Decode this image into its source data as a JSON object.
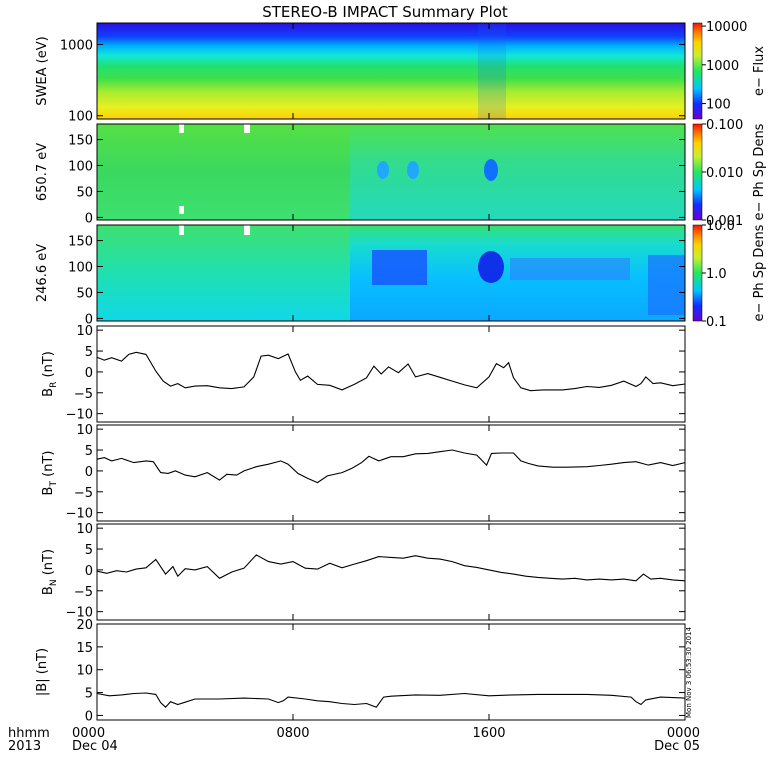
{
  "title": "STEREO-B IMPACT Summary Plot",
  "stamp": "Mon Nov 3 06:53:30 2014",
  "xaxis": {
    "corner_top": "hhmm",
    "corner_bottom": "2013",
    "ticks": [
      {
        "label": "0000",
        "date": "Dec 04",
        "hour": 0
      },
      {
        "label": "0800",
        "date": "",
        "hour": 8
      },
      {
        "label": "1600",
        "date": "",
        "hour": 16
      },
      {
        "label": "0000",
        "date": "Dec 05",
        "hour": 24
      }
    ]
  },
  "chart_data": [
    {
      "type": "heatmap",
      "ylabel": "SWEA (eV)",
      "ylog": true,
      "ylim": [
        90,
        2000
      ],
      "yticks": [
        {
          "v": 100,
          "label": "100"
        },
        {
          "v": 1000,
          "label": "1000"
        }
      ],
      "colorbar": {
        "label": "e− Flux",
        "log": true,
        "range": [
          40,
          12000
        ],
        "ticks": [
          {
            "v": 100,
            "label": "100"
          },
          {
            "v": 1000,
            "label": "1000"
          },
          {
            "v": 10000,
            "label": "10000"
          }
        ]
      }
    },
    {
      "type": "heatmap",
      "ylabel": "650.7 eV",
      "ylim": [
        -5,
        180
      ],
      "yticks": [
        {
          "v": 0,
          "label": "0"
        },
        {
          "v": 50,
          "label": "50"
        },
        {
          "v": 100,
          "label": "100"
        },
        {
          "v": 150,
          "label": "150"
        }
      ],
      "colorbar": {
        "label": "e− Ph Sp Dens",
        "log": true,
        "range": [
          0.001,
          0.1
        ],
        "ticks": [
          {
            "v": 0.001,
            "label": "0.001"
          },
          {
            "v": 0.01,
            "label": "0.010"
          },
          {
            "v": 0.1,
            "label": "0.100"
          }
        ]
      }
    },
    {
      "type": "heatmap",
      "ylabel": "246.6 eV",
      "ylim": [
        -5,
        180
      ],
      "yticks": [
        {
          "v": 0,
          "label": "0"
        },
        {
          "v": 50,
          "label": "50"
        },
        {
          "v": 100,
          "label": "100"
        },
        {
          "v": 150,
          "label": "150"
        }
      ],
      "colorbar": {
        "label": "e− Ph Sp Dens",
        "log": true,
        "range": [
          0.1,
          10
        ],
        "ticks": [
          {
            "v": 0.1,
            "label": "0.1"
          },
          {
            "v": 1,
            "label": "1.0"
          },
          {
            "v": 10,
            "label": "10.0"
          }
        ]
      }
    },
    {
      "type": "line",
      "ylabel": "B",
      "ysub": "R",
      "yunit": " (nT)",
      "ylim": [
        -12,
        11
      ],
      "yticks": [
        {
          "v": -10,
          "label": "−10"
        },
        {
          "v": -5,
          "label": "−5"
        },
        {
          "v": 0,
          "label": "0"
        },
        {
          "v": 5,
          "label": "5"
        },
        {
          "v": 10,
          "label": "10"
        }
      ],
      "x": [
        0,
        0.3,
        0.6,
        1.0,
        1.3,
        1.6,
        2.0,
        2.4,
        2.7,
        3.0,
        3.3,
        3.6,
        4.0,
        4.5,
        5.0,
        5.5,
        6.0,
        6.4,
        6.7,
        7.0,
        7.4,
        7.8,
        8.1,
        8.3,
        8.6,
        9.0,
        9.5,
        10.0,
        10.5,
        11.0,
        11.3,
        11.6,
        11.9,
        12.3,
        12.7,
        13.0,
        13.5,
        14.0,
        14.5,
        15.0,
        15.5,
        16.0,
        16.3,
        16.6,
        16.8,
        17.0,
        17.3,
        17.7,
        18.2,
        19.0,
        19.5,
        20.0,
        20.5,
        21.0,
        21.5,
        22.0,
        22.2,
        22.4,
        22.7,
        23.0,
        23.5,
        24.0
      ],
      "values": [
        3.5,
        2.8,
        3.4,
        2.6,
        4.2,
        4.7,
        4.2,
        0.2,
        -2.2,
        -3.4,
        -2.8,
        -3.8,
        -3.4,
        -3.3,
        -3.8,
        -4.0,
        -3.6,
        -1.2,
        3.8,
        4.0,
        3.2,
        4.3,
        0.0,
        -2.0,
        -1.0,
        -3.0,
        -3.2,
        -4.3,
        -3.0,
        -1.4,
        1.4,
        -0.5,
        1.2,
        -0.2,
        1.9,
        -1.2,
        -0.4,
        -1.3,
        -2.2,
        -3.1,
        -3.8,
        -1.2,
        2.0,
        1.0,
        2.2,
        -1.4,
        -3.8,
        -4.5,
        -4.3,
        -4.3,
        -4.0,
        -3.5,
        -3.7,
        -3.2,
        -2.2,
        -3.5,
        -2.8,
        -1.2,
        -2.8,
        -2.6,
        -3.3,
        -2.9
      ]
    },
    {
      "type": "line",
      "ylabel": "B",
      "ysub": "T",
      "yunit": " (nT)",
      "ylim": [
        -12,
        11
      ],
      "yticks": [
        {
          "v": -10,
          "label": "−10"
        },
        {
          "v": -5,
          "label": "−5"
        },
        {
          "v": 0,
          "label": "0"
        },
        {
          "v": 5,
          "label": "5"
        },
        {
          "v": 10,
          "label": "10"
        }
      ],
      "x": [
        0,
        0.3,
        0.6,
        1.0,
        1.5,
        2.0,
        2.3,
        2.6,
        2.9,
        3.2,
        3.6,
        4.0,
        4.5,
        5.0,
        5.3,
        5.7,
        6.0,
        6.5,
        7.0,
        7.5,
        7.8,
        8.2,
        8.6,
        9.0,
        9.4,
        10.0,
        10.4,
        10.8,
        11.1,
        11.5,
        12.0,
        12.5,
        13.0,
        13.5,
        14.0,
        14.5,
        15.0,
        15.5,
        15.9,
        16.1,
        16.5,
        17.0,
        17.3,
        17.6,
        18.0,
        18.6,
        19.2,
        20.0,
        20.5,
        21.0,
        21.5,
        22.0,
        22.5,
        23.0,
        23.5,
        24.0
      ],
      "values": [
        2.8,
        3.2,
        2.4,
        3.0,
        2.0,
        2.4,
        2.2,
        -0.4,
        -0.6,
        0.0,
        -1.0,
        -1.4,
        -0.4,
        -2.2,
        -0.8,
        -1.0,
        0.0,
        1.0,
        1.6,
        2.4,
        1.6,
        -0.6,
        -1.8,
        -2.8,
        -1.2,
        -0.4,
        0.6,
        2.0,
        3.5,
        2.4,
        3.4,
        3.4,
        4.1,
        4.2,
        4.6,
        5.0,
        4.3,
        3.8,
        1.4,
        4.2,
        4.3,
        4.3,
        2.4,
        1.8,
        1.2,
        0.9,
        0.9,
        1.0,
        1.3,
        1.6,
        2.0,
        2.2,
        1.4,
        2.0,
        1.3,
        2.0
      ]
    },
    {
      "type": "line",
      "ylabel": "B",
      "ysub": "N",
      "yunit": " (nT)",
      "ylim": [
        -12,
        11
      ],
      "yticks": [
        {
          "v": -10,
          "label": "−10"
        },
        {
          "v": -5,
          "label": "−5"
        },
        {
          "v": 0,
          "label": "0"
        },
        {
          "v": 5,
          "label": "5"
        },
        {
          "v": 10,
          "label": "10"
        }
      ],
      "x": [
        0,
        0.4,
        0.8,
        1.2,
        1.6,
        2.0,
        2.4,
        2.8,
        3.1,
        3.3,
        3.6,
        4.0,
        4.5,
        5.0,
        5.5,
        6.0,
        6.5,
        7.0,
        7.5,
        8.0,
        8.5,
        9.0,
        9.5,
        10.0,
        10.5,
        11.0,
        11.5,
        12.0,
        12.5,
        13.0,
        13.5,
        14.0,
        14.5,
        15.0,
        15.5,
        16.0,
        16.5,
        17.0,
        17.5,
        18.0,
        18.5,
        19.0,
        19.5,
        20.0,
        20.5,
        21.0,
        21.5,
        22.0,
        22.3,
        22.6,
        23.0,
        23.5,
        24.0
      ],
      "values": [
        -0.3,
        -0.8,
        -0.2,
        -0.5,
        0.2,
        0.5,
        2.5,
        -1.0,
        0.8,
        -1.5,
        0.3,
        0.0,
        0.8,
        -2.0,
        -0.5,
        0.4,
        3.6,
        2.0,
        1.4,
        2.0,
        0.4,
        0.2,
        1.6,
        0.5,
        1.4,
        2.2,
        3.2,
        3.0,
        2.8,
        3.4,
        2.8,
        2.6,
        2.0,
        1.0,
        0.6,
        0.0,
        -0.6,
        -1.0,
        -1.5,
        -1.8,
        -2.0,
        -2.2,
        -2.0,
        -2.4,
        -2.2,
        -2.4,
        -2.2,
        -2.6,
        -1.0,
        -2.2,
        -2.0,
        -2.4,
        -2.6
      ]
    },
    {
      "type": "line",
      "ylabel": "|B|",
      "ysub": "",
      "yunit": " (nT)",
      "ylim": [
        -1,
        20
      ],
      "yticks": [
        {
          "v": 0,
          "label": "0"
        },
        {
          "v": 5,
          "label": "5"
        },
        {
          "v": 10,
          "label": "10"
        },
        {
          "v": 15,
          "label": "15"
        },
        {
          "v": 20,
          "label": "20"
        }
      ],
      "x": [
        0,
        0.5,
        1.0,
        1.5,
        2.0,
        2.4,
        2.6,
        2.8,
        3.0,
        3.3,
        3.6,
        4.0,
        5.0,
        6.0,
        7.0,
        7.4,
        7.6,
        7.8,
        8.5,
        9.0,
        9.5,
        10.0,
        10.5,
        11.0,
        11.4,
        11.7,
        12.0,
        13.0,
        14.0,
        15.0,
        16.0,
        17.0,
        18.0,
        19.0,
        20.0,
        21.0,
        21.8,
        22.0,
        22.2,
        22.4,
        23.0,
        24.0
      ],
      "values": [
        4.8,
        4.3,
        4.5,
        4.8,
        4.9,
        4.6,
        2.8,
        1.8,
        3.0,
        2.4,
        2.9,
        3.6,
        3.6,
        3.8,
        3.6,
        2.8,
        3.2,
        4.0,
        3.6,
        3.2,
        3.0,
        2.6,
        2.4,
        2.6,
        1.8,
        4.0,
        4.2,
        4.5,
        4.4,
        4.8,
        4.3,
        4.5,
        4.6,
        4.6,
        4.6,
        4.4,
        4.0,
        3.0,
        2.4,
        3.4,
        4.0,
        3.8
      ]
    }
  ]
}
